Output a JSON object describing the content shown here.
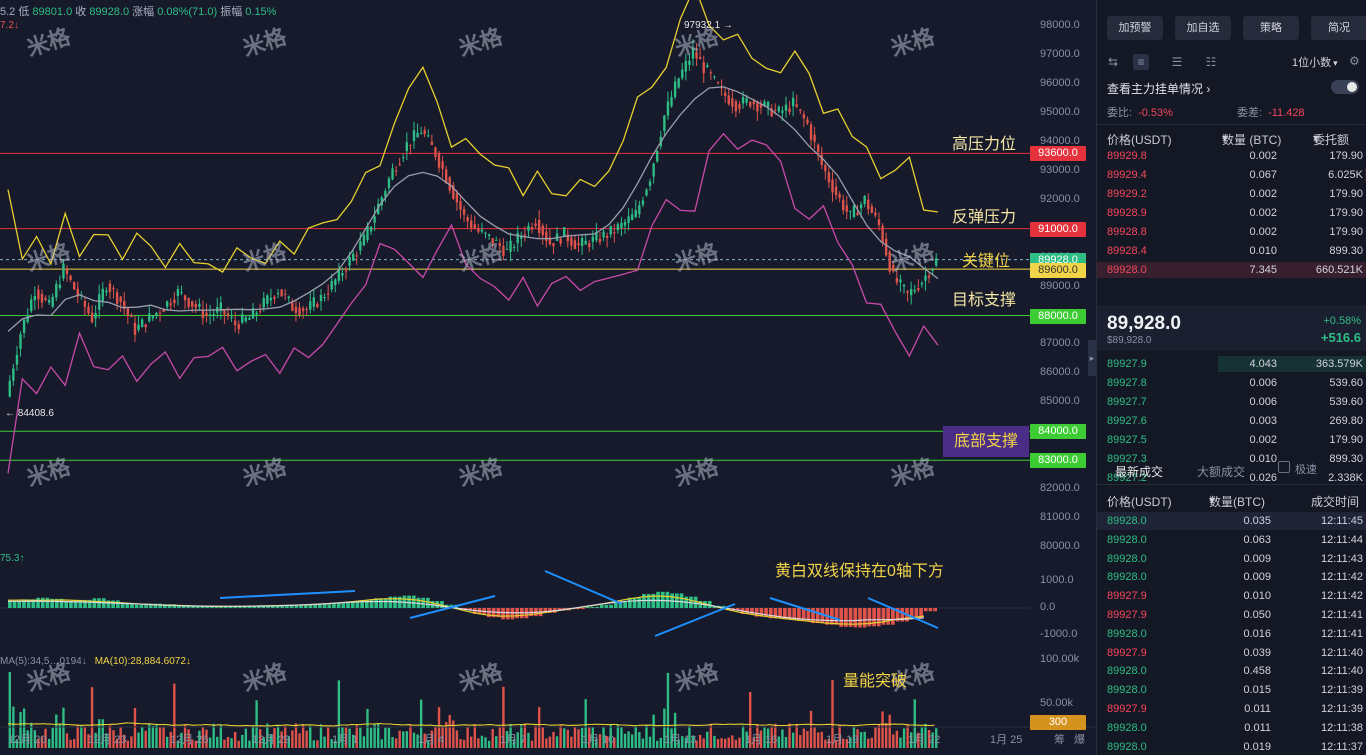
{
  "ohlc_line": {
    "prefix": "5.2",
    "low_label": "低",
    "low": "89801.0",
    "close_label": "收",
    "close": "89928.0",
    "change_label": "涨幅",
    "change": "0.08%(71.0)",
    "amp_label": "振幅",
    "amp": "0.15%"
  },
  "sub_indicator": "7.2↓",
  "macd_tag": "75.3↑",
  "volume_tags": {
    "ma5": "MA(5):34,5…0194↓",
    "ma10": "MA(10):28,884.6072↓"
  },
  "watermark": "米格",
  "y_axis": {
    "price_ticks": [
      "98000.0",
      "97000.0",
      "96000.0",
      "95000.0",
      "94000.0",
      "93000.0",
      "92000.0",
      "91000.0",
      "90000.0",
      "89000.0",
      "88000.0",
      "87000.0",
      "86000.0",
      "85000.0",
      "84000.0",
      "83000.0",
      "82000.0",
      "81000.0",
      "80000.0"
    ],
    "macd_ticks": [
      "1000.0",
      "0.0",
      "-1000.0"
    ],
    "volume_ticks": [
      "100.00k",
      "50.00k"
    ]
  },
  "price_tags": [
    {
      "label": "93600.0",
      "color": "#e5323c"
    },
    {
      "label": "91000.0",
      "color": "#e5323c"
    },
    {
      "label": "89928.0",
      "color": "#2ebd85"
    },
    {
      "label": "89600.0",
      "color": "#f1d447"
    },
    {
      "label": "88000.0",
      "color": "#3dcc34"
    },
    {
      "label": "84000.0",
      "color": "#3dcc34"
    },
    {
      "label": "83000.0",
      "color": "#3dcc34"
    },
    {
      "label": "300",
      "color": "#d4931f"
    }
  ],
  "x_axis": [
    "12月 20",
    "12月 23",
    "12月 26",
    "12月 29",
    "1月 1",
    "1月 4",
    "1月 7",
    "1月 10",
    "1月 13",
    "1月 16",
    "1月 19",
    "1月 22",
    "1月 25"
  ],
  "bottom_buttons": [
    "筹",
    "爆"
  ],
  "annotations": {
    "high_resistance": "高压力位",
    "rebound_resistance": "反弹压力",
    "key_level": "关键位",
    "target_support": "目标支撑",
    "bottom_support": "底部支撑",
    "macd_note": "黄白双线保持在0轴下方",
    "volume_note": "量能突破"
  },
  "markers": {
    "high": "97932.1",
    "low": "84408.6"
  },
  "panel": {
    "buttons": [
      "加预警",
      "加自选",
      "策略",
      "简况"
    ],
    "digits": "1位小数",
    "depth_title": "查看主力挂单情况",
    "weibi_label": "委比:",
    "weibi": "-0.53%",
    "weicha_label": "委差:",
    "weicha": "-11.428",
    "book_headers": {
      "price": "价格(USDT)",
      "qty": "数量 (BTC)",
      "total": "委托额"
    },
    "asks": [
      {
        "price": "89929.8",
        "qty": "0.002",
        "total": "179.90"
      },
      {
        "price": "89929.4",
        "qty": "0.067",
        "total": "6.025K"
      },
      {
        "price": "89929.2",
        "qty": "0.002",
        "total": "179.90"
      },
      {
        "price": "89928.9",
        "qty": "0.002",
        "total": "179.90"
      },
      {
        "price": "89928.8",
        "qty": "0.002",
        "total": "179.90"
      },
      {
        "price": "89928.4",
        "qty": "0.010",
        "total": "899.30"
      },
      {
        "price": "89928.0",
        "qty": "7.345",
        "total": "660.521K"
      }
    ],
    "last_price": "89,928.0",
    "last_price_usd": "$89,928.0",
    "last_pct": "+0.58%",
    "last_change": "+516.6",
    "bids": [
      {
        "price": "89927.9",
        "qty": "4.043",
        "total": "363.579K"
      },
      {
        "price": "89927.8",
        "qty": "0.006",
        "total": "539.60"
      },
      {
        "price": "89927.7",
        "qty": "0.006",
        "total": "539.60"
      },
      {
        "price": "89927.6",
        "qty": "0.003",
        "total": "269.80"
      },
      {
        "price": "89927.5",
        "qty": "0.002",
        "total": "179.90"
      },
      {
        "price": "89927.3",
        "qty": "0.010",
        "total": "899.30"
      },
      {
        "price": "89927.2",
        "qty": "0.026",
        "total": "2.338K"
      }
    ],
    "trade_tabs": {
      "latest": "最新成交",
      "large": "大额成交",
      "fast": "极速"
    },
    "trade_headers": {
      "price": "价格(USDT)",
      "qty": "数量(BTC)",
      "time": "成交时间"
    },
    "trades": [
      {
        "price": "89928.0",
        "qty": "0.035",
        "time": "12:11:45",
        "side": "green"
      },
      {
        "price": "89928.0",
        "qty": "0.063",
        "time": "12:11:44",
        "side": "green"
      },
      {
        "price": "89928.0",
        "qty": "0.009",
        "time": "12:11:43",
        "side": "green"
      },
      {
        "price": "89928.0",
        "qty": "0.009",
        "time": "12:11:42",
        "side": "green"
      },
      {
        "price": "89927.9",
        "qty": "0.010",
        "time": "12:11:42",
        "side": "red"
      },
      {
        "price": "89927.9",
        "qty": "0.050",
        "time": "12:11:41",
        "side": "red"
      },
      {
        "price": "89928.0",
        "qty": "0.016",
        "time": "12:11:41",
        "side": "green"
      },
      {
        "price": "89927.9",
        "qty": "0.039",
        "time": "12:11:40",
        "side": "red"
      },
      {
        "price": "89928.0",
        "qty": "0.458",
        "time": "12:11:40",
        "side": "green"
      },
      {
        "price": "89928.0",
        "qty": "0.015",
        "time": "12:11:39",
        "side": "green"
      },
      {
        "price": "89927.9",
        "qty": "0.011",
        "time": "12:11:39",
        "side": "red"
      },
      {
        "price": "89928.0",
        "qty": "0.011",
        "time": "12:11:38",
        "side": "green"
      },
      {
        "price": "89928.0",
        "qty": "0.019",
        "time": "12:11:37",
        "side": "green"
      }
    ]
  },
  "chart_data": {
    "type": "candlestick",
    "symbol": "BTC/USDT",
    "timeframe": "1位小数 price precision, daily-scale labels",
    "ylim": [
      80000,
      98500
    ],
    "horizontal_levels": [
      {
        "value": 93600,
        "label": "高压力位",
        "color": "#e5323c"
      },
      {
        "value": 91000,
        "label": "反弹压力",
        "color": "#e5323c"
      },
      {
        "value": 89600,
        "label": "关键位",
        "color": "#f1d447"
      },
      {
        "value": 88000,
        "label": "目标支撑",
        "color": "#3dcc34"
      },
      {
        "value": 84000,
        "label": "底部支撑",
        "color": "#3dcc34"
      },
      {
        "value": 83000,
        "label": "底部支撑",
        "color": "#3dcc34"
      }
    ],
    "last": 89928.0,
    "period_high": 97932.1,
    "period_low": 84408.6,
    "close_path": [
      85200,
      87400,
      88900,
      88300,
      89600,
      88700,
      87900,
      89100,
      88500,
      87500,
      87900,
      88300,
      88800,
      88400,
      88000,
      88200,
      87700,
      87900,
      88400,
      88900,
      88300,
      88200,
      88600,
      89200,
      89900,
      90600,
      91800,
      93000,
      93900,
      94400,
      93600,
      92500,
      91400,
      90900,
      90600,
      90200,
      90800,
      91300,
      90500,
      90800,
      90400,
      90600,
      90800,
      91100,
      91500,
      92800,
      94900,
      96200,
      97100,
      96400,
      95700,
      95300,
      95400,
      95200,
      95000,
      95300,
      94600,
      93200,
      92200,
      91400,
      92000,
      91100,
      89300,
      88700,
      89200,
      89900
    ],
    "macd_ylim": [
      -1300,
      1300
    ],
    "macd_hist": [
      260,
      320,
      380,
      340,
      260,
      300,
      360,
      280,
      180,
      120,
      160,
      140,
      110,
      80,
      60,
      40,
      50,
      80,
      90,
      100,
      110,
      120,
      140,
      170,
      230,
      290,
      360,
      420,
      460,
      380,
      260,
      120,
      -80,
      -220,
      -340,
      -420,
      -380,
      -300,
      -180,
      -90,
      -40,
      40,
      120,
      240,
      380,
      520,
      600,
      540,
      420,
      260,
      80,
      -80,
      -220,
      -320,
      -380,
      -420,
      -480,
      -560,
      -620,
      -700,
      -720,
      -680,
      -620,
      -500,
      -380,
      -120
    ],
    "volume_ylim": [
      0,
      120000
    ]
  }
}
